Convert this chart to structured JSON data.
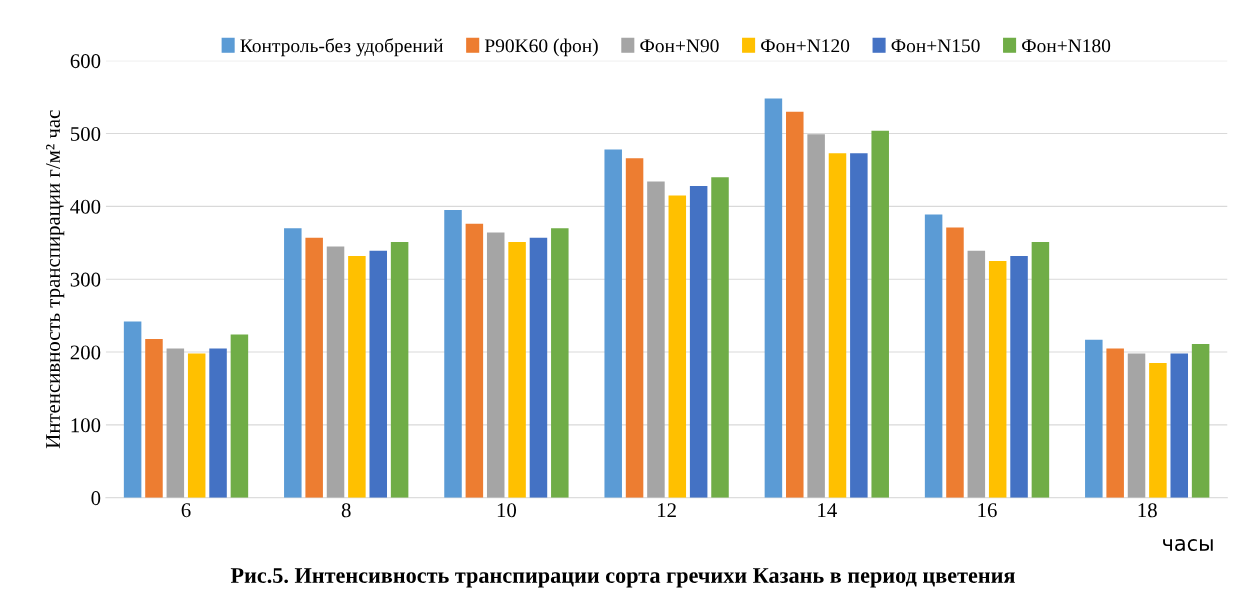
{
  "chart_data": {
    "type": "bar",
    "title": "Рис.5. Интенсивность транспирации сорта гречихи Казань в период цветения",
    "xlabel": "часы",
    "ylabel": "Интенсивность транспирации г/м² час",
    "categories": [
      "6",
      "8",
      "10",
      "12",
      "14",
      "16",
      "18"
    ],
    "series": [
      {
        "name": "Контроль-без удобрений",
        "color": "#5b9bd5",
        "values": [
          242,
          370,
          395,
          478,
          548,
          389,
          217
        ]
      },
      {
        "name": "P90K60 (фон)",
        "color": "#ed7d31",
        "values": [
          218,
          357,
          376,
          466,
          530,
          371,
          205
        ]
      },
      {
        "name": "Фон+N90",
        "color": "#a5a5a5",
        "values": [
          205,
          345,
          364,
          434,
          499,
          339,
          198
        ]
      },
      {
        "name": "Фон+N120",
        "color": "#ffc000",
        "values": [
          198,
          332,
          351,
          415,
          473,
          325,
          185
        ]
      },
      {
        "name": "Фон+N150",
        "color": "#4472c4",
        "values": [
          205,
          339,
          357,
          428,
          473,
          332,
          198
        ]
      },
      {
        "name": "Фон+N180",
        "color": "#70ad47",
        "values": [
          224,
          351,
          370,
          440,
          504,
          351,
          211
        ]
      }
    ],
    "ylim": [
      0,
      600
    ],
    "yticks": [
      0,
      100,
      200,
      300,
      400,
      500,
      600
    ],
    "grid": "y",
    "legend": "top"
  }
}
